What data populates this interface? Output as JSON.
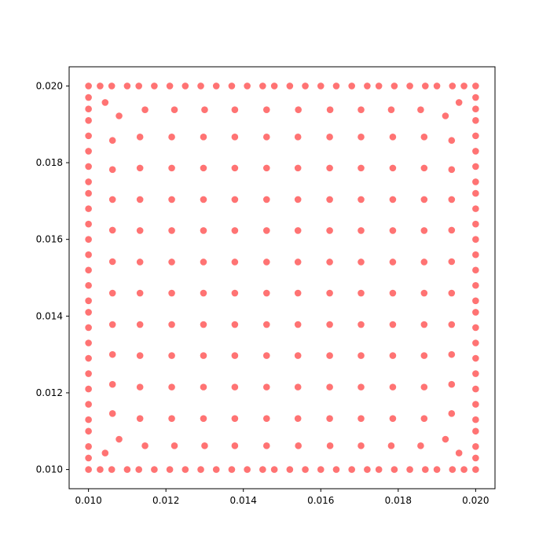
{
  "chart_data": {
    "type": "scatter",
    "title": "",
    "xlabel": "",
    "ylabel": "",
    "xlim": [
      0.0095,
      0.0205
    ],
    "ylim": [
      0.0095,
      0.0205
    ],
    "grid": false,
    "legend": "none",
    "x_ticks": [
      0.01,
      0.012,
      0.014,
      0.016,
      0.018,
      0.02
    ],
    "y_ticks": [
      0.01,
      0.012,
      0.014,
      0.016,
      0.018,
      0.02
    ],
    "x_tick_labels": [
      "0.010",
      "0.012",
      "0.014",
      "0.016",
      "0.018",
      "0.020"
    ],
    "y_tick_labels": [
      "0.010",
      "0.012",
      "0.014",
      "0.016",
      "0.018",
      "0.020"
    ],
    "series": [
      {
        "color": "#ff0000",
        "alpha": 0.55,
        "x": [
          0.01,
          0.0103,
          0.0106,
          0.011,
          0.0113,
          0.0117,
          0.0121,
          0.0125,
          0.0129,
          0.0133,
          0.0137,
          0.0141,
          0.0145,
          0.0148,
          0.0152,
          0.0156,
          0.016,
          0.0164,
          0.0168,
          0.0172,
          0.0175,
          0.0179,
          0.0183,
          0.0187,
          0.019,
          0.0194,
          0.0197,
          0.02,
          0.01,
          0.0103,
          0.0106,
          0.011,
          0.0113,
          0.0117,
          0.0121,
          0.0125,
          0.0129,
          0.0133,
          0.0137,
          0.0141,
          0.0145,
          0.0148,
          0.0152,
          0.0156,
          0.016,
          0.0164,
          0.0168,
          0.0172,
          0.0175,
          0.0179,
          0.0183,
          0.0187,
          0.019,
          0.0194,
          0.0197,
          0.02,
          0.01,
          0.01,
          0.01,
          0.01,
          0.01,
          0.01,
          0.01,
          0.01,
          0.01,
          0.01,
          0.01,
          0.01,
          0.01,
          0.01,
          0.01,
          0.01,
          0.01,
          0.01,
          0.01,
          0.01,
          0.01,
          0.01,
          0.01,
          0.01,
          0.01,
          0.01,
          0.02,
          0.02,
          0.02,
          0.02,
          0.02,
          0.02,
          0.02,
          0.02,
          0.02,
          0.02,
          0.02,
          0.02,
          0.02,
          0.02,
          0.02,
          0.02,
          0.02,
          0.02,
          0.02,
          0.02,
          0.02,
          0.02,
          0.02,
          0.02,
          0.02,
          0.02,
          0.01043,
          0.01079,
          0.01922,
          0.01957,
          0.01043,
          0.01079,
          0.01922,
          0.01957,
          0.01146,
          0.01222,
          0.013,
          0.01378,
          0.0146,
          0.01542,
          0.01624,
          0.01704,
          0.01782,
          0.01858,
          0.01146,
          0.01222,
          0.013,
          0.01378,
          0.0146,
          0.01542,
          0.01624,
          0.01704,
          0.01782,
          0.01858,
          0.01062,
          0.01062,
          0.01062,
          0.01062,
          0.01062,
          0.01062,
          0.01062,
          0.01062,
          0.01062,
          0.01062,
          0.01938,
          0.01938,
          0.01938,
          0.01938,
          0.01938,
          0.01938,
          0.01938,
          0.01938,
          0.01938,
          0.01938,
          0.01133,
          0.01215,
          0.01297,
          0.01378,
          0.0146,
          0.01541,
          0.01623,
          0.01704,
          0.01786,
          0.01867,
          0.01133,
          0.01215,
          0.01297,
          0.01378,
          0.0146,
          0.01541,
          0.01623,
          0.01704,
          0.01786,
          0.01867,
          0.01133,
          0.01215,
          0.01297,
          0.01378,
          0.0146,
          0.01541,
          0.01623,
          0.01704,
          0.01786,
          0.01867,
          0.01133,
          0.01215,
          0.01297,
          0.01378,
          0.0146,
          0.01541,
          0.01623,
          0.01704,
          0.01786,
          0.01867,
          0.01133,
          0.01215,
          0.01297,
          0.01378,
          0.0146,
          0.01541,
          0.01623,
          0.01704,
          0.01786,
          0.01867,
          0.01133,
          0.01215,
          0.01297,
          0.01378,
          0.0146,
          0.01541,
          0.01623,
          0.01704,
          0.01786,
          0.01867,
          0.01133,
          0.01215,
          0.01297,
          0.01378,
          0.0146,
          0.01541,
          0.01623,
          0.01704,
          0.01786,
          0.01867,
          0.01133,
          0.01215,
          0.01297,
          0.01378,
          0.0146,
          0.01541,
          0.01623,
          0.01704,
          0.01786,
          0.01867,
          0.01133,
          0.01215,
          0.01297,
          0.01378,
          0.0146,
          0.01541,
          0.01623,
          0.01704,
          0.01786,
          0.01867,
          0.01133,
          0.01215,
          0.01297,
          0.01378,
          0.0146,
          0.01541,
          0.01623,
          0.01704,
          0.01786,
          0.01867
        ],
        "y": [
          0.02,
          0.02,
          0.02,
          0.02,
          0.02,
          0.02,
          0.02,
          0.02,
          0.02,
          0.02,
          0.02,
          0.02,
          0.02,
          0.02,
          0.02,
          0.02,
          0.02,
          0.02,
          0.02,
          0.02,
          0.02,
          0.02,
          0.02,
          0.02,
          0.02,
          0.02,
          0.02,
          0.02,
          0.01,
          0.01,
          0.01,
          0.01,
          0.01,
          0.01,
          0.01,
          0.01,
          0.01,
          0.01,
          0.01,
          0.01,
          0.01,
          0.01,
          0.01,
          0.01,
          0.01,
          0.01,
          0.01,
          0.01,
          0.01,
          0.01,
          0.01,
          0.01,
          0.01,
          0.01,
          0.01,
          0.01,
          0.0103,
          0.0106,
          0.011,
          0.0113,
          0.0117,
          0.0121,
          0.0125,
          0.0129,
          0.0133,
          0.0137,
          0.0141,
          0.0144,
          0.0148,
          0.0152,
          0.0156,
          0.016,
          0.0164,
          0.0168,
          0.0172,
          0.0175,
          0.0179,
          0.0183,
          0.0187,
          0.0191,
          0.0194,
          0.0197,
          0.0103,
          0.0106,
          0.011,
          0.0113,
          0.0117,
          0.0121,
          0.0125,
          0.0129,
          0.0133,
          0.0137,
          0.0141,
          0.0144,
          0.0148,
          0.0152,
          0.0156,
          0.016,
          0.0164,
          0.0168,
          0.0172,
          0.0175,
          0.0179,
          0.0183,
          0.0187,
          0.0191,
          0.0194,
          0.0197,
          0.01957,
          0.01922,
          0.01922,
          0.01957,
          0.01043,
          0.01079,
          0.01079,
          0.01043,
          0.01938,
          0.01938,
          0.01938,
          0.01938,
          0.01938,
          0.01938,
          0.01938,
          0.01938,
          0.01938,
          0.01938,
          0.01062,
          0.01062,
          0.01062,
          0.01062,
          0.01062,
          0.01062,
          0.01062,
          0.01062,
          0.01062,
          0.01062,
          0.01146,
          0.01222,
          0.013,
          0.01378,
          0.0146,
          0.01542,
          0.01624,
          0.01704,
          0.01782,
          0.01858,
          0.01146,
          0.01222,
          0.013,
          0.01378,
          0.0146,
          0.01542,
          0.01624,
          0.01704,
          0.01782,
          0.01858,
          0.01867,
          0.01867,
          0.01867,
          0.01867,
          0.01867,
          0.01867,
          0.01867,
          0.01867,
          0.01867,
          0.01867,
          0.01786,
          0.01786,
          0.01786,
          0.01786,
          0.01786,
          0.01786,
          0.01786,
          0.01786,
          0.01786,
          0.01786,
          0.01704,
          0.01704,
          0.01704,
          0.01704,
          0.01704,
          0.01704,
          0.01704,
          0.01704,
          0.01704,
          0.01704,
          0.01623,
          0.01623,
          0.01623,
          0.01623,
          0.01623,
          0.01623,
          0.01623,
          0.01623,
          0.01623,
          0.01623,
          0.01541,
          0.01541,
          0.01541,
          0.01541,
          0.01541,
          0.01541,
          0.01541,
          0.01541,
          0.01541,
          0.01541,
          0.0146,
          0.0146,
          0.0146,
          0.0146,
          0.0146,
          0.0146,
          0.0146,
          0.0146,
          0.0146,
          0.0146,
          0.01378,
          0.01378,
          0.01378,
          0.01378,
          0.01378,
          0.01378,
          0.01378,
          0.01378,
          0.01378,
          0.01378,
          0.01297,
          0.01297,
          0.01297,
          0.01297,
          0.01297,
          0.01297,
          0.01297,
          0.01297,
          0.01297,
          0.01297,
          0.01215,
          0.01215,
          0.01215,
          0.01215,
          0.01215,
          0.01215,
          0.01215,
          0.01215,
          0.01215,
          0.01215,
          0.01133,
          0.01133,
          0.01133,
          0.01133,
          0.01133,
          0.01133,
          0.01133,
          0.01133,
          0.01133,
          0.01133
        ]
      }
    ]
  }
}
